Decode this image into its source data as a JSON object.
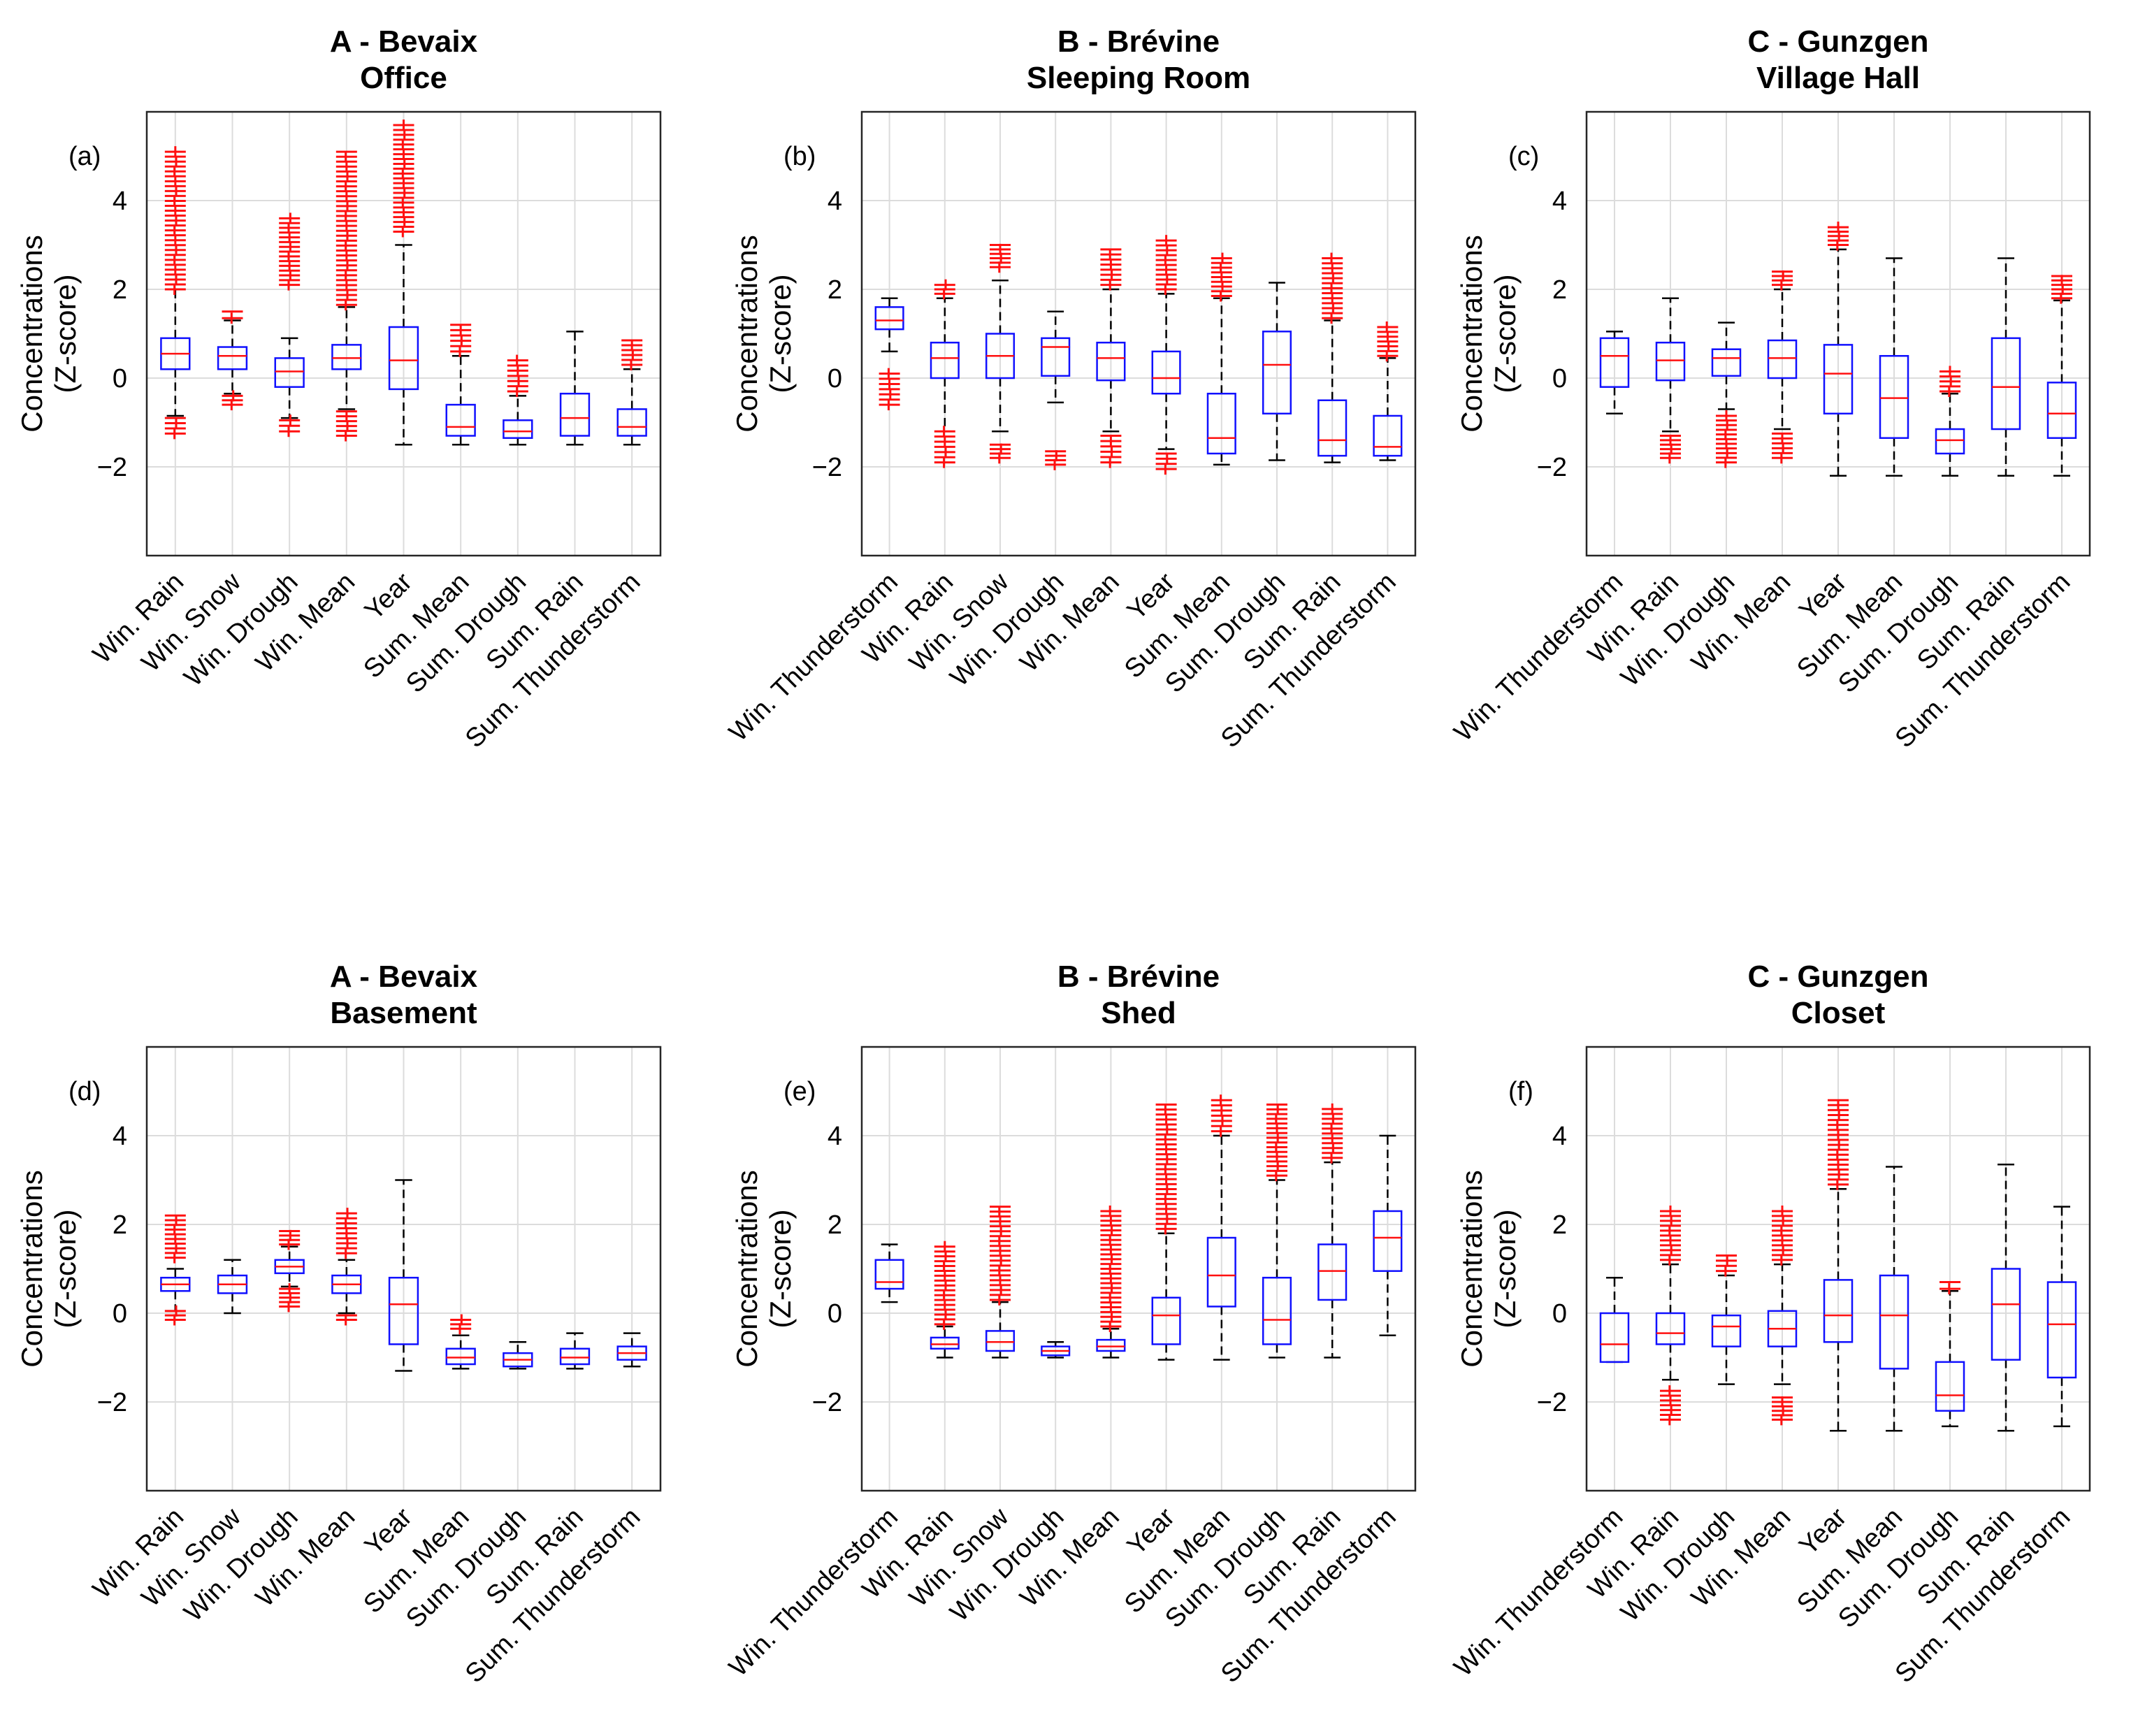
{
  "colors": {
    "box": "#1010ff",
    "median": "#ff1010",
    "outlier": "#ff1010",
    "whisker": "#000000",
    "grid": "#dcdcdc"
  },
  "chart_data": [
    {
      "type": "boxplot",
      "panel_label": "(a)",
      "title_line1": "A - Bevaix",
      "title_line2": "Office",
      "ylabel_line1": "Concentrations",
      "ylabel_line2": "(Z-score)",
      "ylim": [
        -4,
        6
      ],
      "yticks": [
        -2,
        0,
        2,
        4
      ],
      "categories": [
        "Win. Rain",
        "Win. Snow",
        "Win. Drough",
        "Win. Mean",
        "Year",
        "Sum. Mean",
        "Sum. Drough",
        "Sum. Rain",
        "Sum. Thunderstorm"
      ],
      "boxes": [
        {
          "wlo": -0.85,
          "q1": 0.2,
          "med": 0.55,
          "q3": 0.9,
          "whi": 2.0,
          "outliers": [
            [
              -1.25,
              -0.9
            ],
            [
              2.0,
              5.1
            ]
          ]
        },
        {
          "wlo": -0.35,
          "q1": 0.2,
          "med": 0.5,
          "q3": 0.7,
          "whi": 1.3,
          "outliers": [
            [
              -0.6,
              -0.4
            ],
            [
              1.35,
              1.5
            ]
          ]
        },
        {
          "wlo": -0.9,
          "q1": -0.2,
          "med": 0.15,
          "q3": 0.45,
          "whi": 0.9,
          "outliers": [
            [
              -1.2,
              -0.95
            ],
            [
              2.1,
              3.6
            ]
          ]
        },
        {
          "wlo": -0.7,
          "q1": 0.2,
          "med": 0.45,
          "q3": 0.75,
          "whi": 1.6,
          "outliers": [
            [
              -1.3,
              -0.75
            ],
            [
              1.65,
              5.1
            ]
          ]
        },
        {
          "wlo": -1.5,
          "q1": -0.25,
          "med": 0.4,
          "q3": 1.15,
          "whi": 3.0,
          "outliers": [
            [
              3.3,
              5.7
            ]
          ]
        },
        {
          "wlo": -1.5,
          "q1": -1.3,
          "med": -1.1,
          "q3": -0.6,
          "whi": 0.5,
          "outliers": [
            [
              0.6,
              1.2
            ]
          ]
        },
        {
          "wlo": -1.5,
          "q1": -1.35,
          "med": -1.2,
          "q3": -0.95,
          "whi": -0.4,
          "outliers": [
            [
              -0.3,
              0.4
            ]
          ]
        },
        {
          "wlo": -1.5,
          "q1": -1.3,
          "med": -0.9,
          "q3": -0.35,
          "whi": 1.05,
          "outliers": []
        },
        {
          "wlo": -1.5,
          "q1": -1.3,
          "med": -1.1,
          "q3": -0.7,
          "whi": 0.2,
          "outliers": [
            [
              0.3,
              0.85
            ]
          ]
        }
      ]
    },
    {
      "type": "boxplot",
      "panel_label": "(b)",
      "title_line1": "B - Brévine",
      "title_line2": "Sleeping Room",
      "ylabel_line1": "Concentrations",
      "ylabel_line2": "(Z-score)",
      "ylim": [
        -4,
        6
      ],
      "yticks": [
        -2,
        0,
        2,
        4
      ],
      "categories": [
        "Win. Thunderstorm",
        "Win. Rain",
        "Win. Snow",
        "Win. Drough",
        "Win. Mean",
        "Year",
        "Sum. Mean",
        "Sum. Drough",
        "Sum. Rain",
        "Sum. Thunderstorm"
      ],
      "boxes": [
        {
          "wlo": 0.6,
          "q1": 1.1,
          "med": 1.3,
          "q3": 1.6,
          "whi": 1.8,
          "outliers": [
            [
              -0.6,
              0.1
            ]
          ]
        },
        {
          "wlo": -1.2,
          "q1": 0.0,
          "med": 0.45,
          "q3": 0.8,
          "whi": 1.8,
          "outliers": [
            [
              -1.9,
              -1.2
            ],
            [
              1.9,
              2.1
            ]
          ]
        },
        {
          "wlo": -1.2,
          "q1": 0.0,
          "med": 0.5,
          "q3": 1.0,
          "whi": 2.2,
          "outliers": [
            [
              -1.8,
              -1.5
            ],
            [
              2.5,
              3.0
            ]
          ]
        },
        {
          "wlo": -0.55,
          "q1": 0.05,
          "med": 0.7,
          "q3": 0.9,
          "whi": 1.5,
          "outliers": [
            [
              -1.95,
              -1.65
            ]
          ]
        },
        {
          "wlo": -1.2,
          "q1": -0.05,
          "med": 0.45,
          "q3": 0.8,
          "whi": 2.0,
          "outliers": [
            [
              -1.9,
              -1.3
            ],
            [
              2.1,
              2.9
            ]
          ]
        },
        {
          "wlo": -1.6,
          "q1": -0.35,
          "med": 0.0,
          "q3": 0.6,
          "whi": 1.9,
          "outliers": [
            [
              -2.05,
              -1.7
            ],
            [
              2.0,
              3.1
            ]
          ]
        },
        {
          "wlo": -1.95,
          "q1": -1.7,
          "med": -1.35,
          "q3": -0.35,
          "whi": 1.8,
          "outliers": [
            [
              1.85,
              2.7
            ]
          ]
        },
        {
          "wlo": -1.85,
          "q1": -0.8,
          "med": 0.3,
          "q3": 1.05,
          "whi": 2.15,
          "outliers": []
        },
        {
          "wlo": -1.9,
          "q1": -1.75,
          "med": -1.4,
          "q3": -0.5,
          "whi": 1.3,
          "outliers": [
            [
              1.35,
              2.7
            ]
          ]
        },
        {
          "wlo": -1.85,
          "q1": -1.75,
          "med": -1.55,
          "q3": -0.85,
          "whi": 0.45,
          "outliers": [
            [
              0.5,
              1.15
            ]
          ]
        }
      ]
    },
    {
      "type": "boxplot",
      "panel_label": "(c)",
      "title_line1": "C - Gunzgen",
      "title_line2": "Village Hall",
      "ylabel_line1": "Concentrations",
      "ylabel_line2": "(Z-score)",
      "ylim": [
        -4,
        6
      ],
      "yticks": [
        -2,
        0,
        2,
        4
      ],
      "categories": [
        "Win. Thunderstorm",
        "Win. Rain",
        "Win. Drough",
        "Win. Mean",
        "Year",
        "Sum. Mean",
        "Sum. Drough",
        "Sum. Rain",
        "Sum. Thunderstorm"
      ],
      "boxes": [
        {
          "wlo": -0.8,
          "q1": -0.2,
          "med": 0.5,
          "q3": 0.9,
          "whi": 1.05,
          "outliers": []
        },
        {
          "wlo": -1.2,
          "q1": -0.05,
          "med": 0.4,
          "q3": 0.8,
          "whi": 1.8,
          "outliers": [
            [
              -1.8,
              -1.3
            ]
          ]
        },
        {
          "wlo": -0.7,
          "q1": 0.05,
          "med": 0.45,
          "q3": 0.65,
          "whi": 1.25,
          "outliers": [
            [
              -1.9,
              -0.85
            ]
          ]
        },
        {
          "wlo": -1.15,
          "q1": 0.0,
          "med": 0.45,
          "q3": 0.85,
          "whi": 2.0,
          "outliers": [
            [
              -1.8,
              -1.25
            ],
            [
              2.1,
              2.4
            ]
          ]
        },
        {
          "wlo": -2.2,
          "q1": -0.8,
          "med": 0.1,
          "q3": 0.75,
          "whi": 2.9,
          "outliers": [
            [
              3.0,
              3.4
            ]
          ]
        },
        {
          "wlo": -2.2,
          "q1": -1.35,
          "med": -0.45,
          "q3": 0.5,
          "whi": 2.7,
          "outliers": []
        },
        {
          "wlo": -2.2,
          "q1": -1.7,
          "med": -1.4,
          "q3": -1.15,
          "whi": -0.35,
          "outliers": [
            [
              -0.3,
              0.15
            ]
          ]
        },
        {
          "wlo": -2.2,
          "q1": -1.15,
          "med": -0.2,
          "q3": 0.9,
          "whi": 2.7,
          "outliers": []
        },
        {
          "wlo": -2.2,
          "q1": -1.35,
          "med": -0.8,
          "q3": -0.1,
          "whi": 1.75,
          "outliers": [
            [
              1.8,
              2.3
            ]
          ]
        }
      ]
    },
    {
      "type": "boxplot",
      "panel_label": "(d)",
      "title_line1": "A - Bevaix",
      "title_line2": "Basement",
      "ylabel_line1": "Concentrations",
      "ylabel_line2": "(Z-score)",
      "ylim": [
        -4,
        6
      ],
      "yticks": [
        -2,
        0,
        2,
        4
      ],
      "categories": [
        "Win. Rain",
        "Win. Snow",
        "Win. Drough",
        "Win. Mean",
        "Year",
        "Sum. Mean",
        "Sum. Drough",
        "Sum. Rain",
        "Sum. Thunderstorm"
      ],
      "boxes": [
        {
          "wlo": 0.05,
          "q1": 0.5,
          "med": 0.65,
          "q3": 0.8,
          "whi": 1.0,
          "outliers": [
            [
              -0.15,
              0.05
            ],
            [
              1.25,
              2.2
            ]
          ]
        },
        {
          "wlo": 0.0,
          "q1": 0.45,
          "med": 0.65,
          "q3": 0.85,
          "whi": 1.2,
          "outliers": []
        },
        {
          "wlo": 0.6,
          "q1": 0.9,
          "med": 1.05,
          "q3": 1.2,
          "whi": 1.5,
          "outliers": [
            [
              0.15,
              0.55
            ],
            [
              1.55,
              1.85
            ]
          ]
        },
        {
          "wlo": 0.0,
          "q1": 0.45,
          "med": 0.65,
          "q3": 0.85,
          "whi": 1.2,
          "outliers": [
            [
              -0.15,
              -0.05
            ],
            [
              1.35,
              2.25
            ]
          ]
        },
        {
          "wlo": -1.3,
          "q1": -0.7,
          "med": 0.2,
          "q3": 0.8,
          "whi": 3.0,
          "outliers": []
        },
        {
          "wlo": -1.25,
          "q1": -1.15,
          "med": -1.0,
          "q3": -0.8,
          "whi": -0.5,
          "outliers": [
            [
              -0.35,
              -0.15
            ]
          ]
        },
        {
          "wlo": -1.25,
          "q1": -1.2,
          "med": -1.05,
          "q3": -0.9,
          "whi": -0.65,
          "outliers": []
        },
        {
          "wlo": -1.25,
          "q1": -1.15,
          "med": -1.0,
          "q3": -0.8,
          "whi": -0.45,
          "outliers": []
        },
        {
          "wlo": -1.2,
          "q1": -1.05,
          "med": -0.9,
          "q3": -0.75,
          "whi": -0.45,
          "outliers": []
        }
      ]
    },
    {
      "type": "boxplot",
      "panel_label": "(e)",
      "title_line1": "B - Brévine",
      "title_line2": "Shed",
      "ylabel_line1": "Concentrations",
      "ylabel_line2": "(Z-score)",
      "ylim": [
        -4,
        6
      ],
      "yticks": [
        -2,
        0,
        2,
        4
      ],
      "categories": [
        "Win. Thunderstorm",
        "Win. Rain",
        "Win. Snow",
        "Win. Drough",
        "Win. Mean",
        "Year",
        "Sum. Mean",
        "Sum. Drough",
        "Sum. Rain",
        "Sum. Thunderstorm"
      ],
      "boxes": [
        {
          "wlo": 0.25,
          "q1": 0.55,
          "med": 0.7,
          "q3": 1.2,
          "whi": 1.55,
          "outliers": []
        },
        {
          "wlo": -1.0,
          "q1": -0.8,
          "med": -0.7,
          "q3": -0.55,
          "whi": -0.3,
          "outliers": [
            [
              -0.25,
              1.5
            ]
          ]
        },
        {
          "wlo": -1.0,
          "q1": -0.85,
          "med": -0.65,
          "q3": -0.4,
          "whi": 0.25,
          "outliers": [
            [
              0.3,
              2.4
            ]
          ]
        },
        {
          "wlo": -1.0,
          "q1": -0.95,
          "med": -0.85,
          "q3": -0.75,
          "whi": -0.65,
          "outliers": []
        },
        {
          "wlo": -1.0,
          "q1": -0.85,
          "med": -0.75,
          "q3": -0.6,
          "whi": -0.35,
          "outliers": [
            [
              -0.3,
              2.3
            ]
          ]
        },
        {
          "wlo": -1.05,
          "q1": -0.7,
          "med": -0.05,
          "q3": 0.35,
          "whi": 1.8,
          "outliers": [
            [
              1.9,
              4.7
            ]
          ]
        },
        {
          "wlo": -1.05,
          "q1": 0.15,
          "med": 0.85,
          "q3": 1.7,
          "whi": 4.0,
          "outliers": [
            [
              4.1,
              4.8
            ]
          ]
        },
        {
          "wlo": -1.0,
          "q1": -0.7,
          "med": -0.15,
          "q3": 0.8,
          "whi": 3.0,
          "outliers": [
            [
              3.1,
              4.7
            ]
          ]
        },
        {
          "wlo": -1.0,
          "q1": 0.3,
          "med": 0.95,
          "q3": 1.55,
          "whi": 3.4,
          "outliers": [
            [
              3.5,
              4.6
            ]
          ]
        },
        {
          "wlo": -0.5,
          "q1": 0.95,
          "med": 1.7,
          "q3": 2.3,
          "whi": 4.0,
          "outliers": []
        }
      ]
    },
    {
      "type": "boxplot",
      "panel_label": "(f)",
      "title_line1": "C - Gunzgen",
      "title_line2": "Closet",
      "ylabel_line1": "Concentrations",
      "ylabel_line2": "(Z-score)",
      "ylim": [
        -4,
        6
      ],
      "yticks": [
        -2,
        0,
        2,
        4
      ],
      "categories": [
        "Win. Thunderstorm",
        "Win. Rain",
        "Win. Drough",
        "Win. Mean",
        "Year",
        "Sum. Mean",
        "Sum. Drough",
        "Sum. Rain",
        "Sum. Thunderstorm"
      ],
      "boxes": [
        {
          "wlo": -1.1,
          "q1": -1.1,
          "med": -0.7,
          "q3": 0.0,
          "whi": 0.8,
          "outliers": []
        },
        {
          "wlo": -1.5,
          "q1": -0.7,
          "med": -0.45,
          "q3": 0.0,
          "whi": 1.1,
          "outliers": [
            [
              -2.4,
              -1.75
            ],
            [
              1.2,
              2.3
            ]
          ]
        },
        {
          "wlo": -1.6,
          "q1": -0.75,
          "med": -0.3,
          "q3": -0.05,
          "whi": 0.85,
          "outliers": [
            [
              0.95,
              1.3
            ]
          ]
        },
        {
          "wlo": -1.6,
          "q1": -0.75,
          "med": -0.35,
          "q3": 0.05,
          "whi": 1.1,
          "outliers": [
            [
              -2.4,
              -1.9
            ],
            [
              1.2,
              2.3
            ]
          ]
        },
        {
          "wlo": -2.65,
          "q1": -0.65,
          "med": -0.05,
          "q3": 0.75,
          "whi": 2.8,
          "outliers": [
            [
              2.9,
              4.8
            ]
          ]
        },
        {
          "wlo": -2.65,
          "q1": -1.25,
          "med": -0.05,
          "q3": 0.85,
          "whi": 3.3,
          "outliers": []
        },
        {
          "wlo": -2.55,
          "q1": -2.2,
          "med": -1.85,
          "q3": -1.1,
          "whi": 0.5,
          "outliers": [
            [
              0.55,
              0.7
            ]
          ]
        },
        {
          "wlo": -2.65,
          "q1": -1.05,
          "med": 0.2,
          "q3": 1.0,
          "whi": 3.35,
          "outliers": []
        },
        {
          "wlo": -2.55,
          "q1": -1.45,
          "med": -0.25,
          "q3": 0.7,
          "whi": 2.4,
          "outliers": []
        }
      ]
    }
  ]
}
